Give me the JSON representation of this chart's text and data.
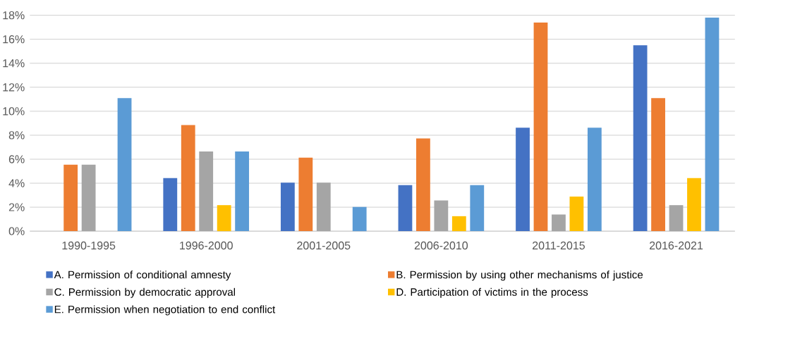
{
  "chart_data": {
    "type": "bar",
    "categories": [
      "1990-1995",
      "1996-2000",
      "2001-2005",
      "2006-2010",
      "2011-2015",
      "2016-2021"
    ],
    "series": [
      {
        "name": "A. Permission of conditional amnesty",
        "color": "#4472c4",
        "values": [
          0,
          4.43,
          4.05,
          3.84,
          8.63,
          15.5
        ]
      },
      {
        "name": "B. Permission by using other mechanisms of justice",
        "color": "#ed7d31",
        "values": [
          5.55,
          8.85,
          6.13,
          7.73,
          17.4,
          11.1
        ]
      },
      {
        "name": "C. Permission by democratic approval",
        "color": "#a5a5a5",
        "values": [
          5.55,
          6.64,
          4.05,
          2.56,
          1.39,
          2.17
        ]
      },
      {
        "name": "D. Participation of victims in the process",
        "color": "#ffc000",
        "values": [
          0,
          2.17,
          0,
          1.25,
          2.88,
          4.43
        ]
      },
      {
        "name": "E. Permission when negotiation to end conflict",
        "color": "#5b9bd5",
        "values": [
          11.1,
          6.64,
          2.02,
          3.84,
          8.63,
          17.8
        ]
      }
    ],
    "ylim": [
      0,
      18
    ],
    "yticks": [
      {
        "value": 0,
        "label": "0%"
      },
      {
        "value": 2,
        "label": "2%"
      },
      {
        "value": 4,
        "label": "4%"
      },
      {
        "value": 6,
        "label": "6%"
      },
      {
        "value": 8,
        "label": "8%"
      },
      {
        "value": 10,
        "label": "10%"
      },
      {
        "value": 12,
        "label": "12%"
      },
      {
        "value": 14,
        "label": "14%"
      },
      {
        "value": 16,
        "label": "16%"
      },
      {
        "value": 18,
        "label": "18%"
      }
    ],
    "grid": "y",
    "legend": "bottom"
  }
}
